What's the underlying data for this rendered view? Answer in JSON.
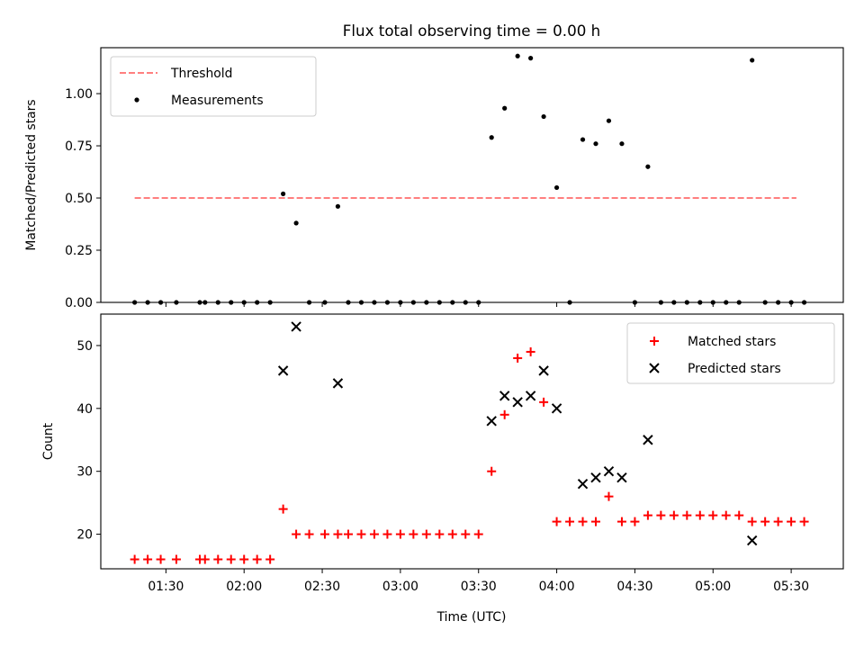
{
  "chart_data": [
    {
      "type": "scatter",
      "title": "Flux total observing time = 0.00 h",
      "xlabel": "",
      "ylabel": "Matched/Predicted stars",
      "ylim": [
        0,
        1.22
      ],
      "yticks": [
        0.0,
        0.25,
        0.5,
        0.75,
        1.0
      ],
      "ytick_labels": [
        "0.00",
        "0.25",
        "0.50",
        "0.75",
        "1.00"
      ],
      "xlim": [
        "01:05",
        "05:50"
      ],
      "grid": false,
      "legend_position": "top-left",
      "threshold": {
        "name": "Threshold",
        "value": 0.5,
        "x_start": "01:18",
        "x_end": "05:32",
        "color": "#ff7f7f"
      },
      "series": [
        {
          "name": "Measurements",
          "color": "#000000",
          "points": [
            [
              "01:18",
              0
            ],
            [
              "01:23",
              0
            ],
            [
              "01:28",
              0
            ],
            [
              "01:34",
              0
            ],
            [
              "01:43",
              0
            ],
            [
              "01:45",
              0
            ],
            [
              "01:50",
              0
            ],
            [
              "01:55",
              0
            ],
            [
              "02:00",
              0
            ],
            [
              "02:05",
              0
            ],
            [
              "02:10",
              0
            ],
            [
              "02:15",
              0.52
            ],
            [
              "02:20",
              0.38
            ],
            [
              "02:25",
              0
            ],
            [
              "02:31",
              0
            ],
            [
              "02:36",
              0.46
            ],
            [
              "02:40",
              0
            ],
            [
              "02:45",
              0
            ],
            [
              "02:50",
              0
            ],
            [
              "02:55",
              0
            ],
            [
              "03:00",
              0
            ],
            [
              "03:05",
              0
            ],
            [
              "03:10",
              0
            ],
            [
              "03:15",
              0
            ],
            [
              "03:20",
              0
            ],
            [
              "03:25",
              0
            ],
            [
              "03:30",
              0
            ],
            [
              "03:35",
              0.79
            ],
            [
              "03:40",
              0.93
            ],
            [
              "03:45",
              1.18
            ],
            [
              "03:50",
              1.17
            ],
            [
              "03:55",
              0.89
            ],
            [
              "04:00",
              0.55
            ],
            [
              "04:05",
              0
            ],
            [
              "04:10",
              0.78
            ],
            [
              "04:15",
              0.76
            ],
            [
              "04:20",
              0.87
            ],
            [
              "04:25",
              0.76
            ],
            [
              "04:30",
              0
            ],
            [
              "04:35",
              0.65
            ],
            [
              "04:40",
              0
            ],
            [
              "04:45",
              0
            ],
            [
              "04:50",
              0
            ],
            [
              "04:55",
              0
            ],
            [
              "05:00",
              0
            ],
            [
              "05:05",
              0
            ],
            [
              "05:10",
              0
            ],
            [
              "05:15",
              1.16
            ],
            [
              "05:20",
              0
            ],
            [
              "05:25",
              0
            ],
            [
              "05:30",
              0
            ],
            [
              "05:35",
              0
            ]
          ]
        }
      ]
    },
    {
      "type": "scatter",
      "title": "",
      "xlabel": "Time (UTC)",
      "ylabel": "Count",
      "ylim": [
        14.5,
        55
      ],
      "yticks": [
        20,
        30,
        40,
        50
      ],
      "ytick_labels": [
        "20",
        "30",
        "40",
        "50"
      ],
      "xlim": [
        "01:05",
        "05:50"
      ],
      "xticks": [
        "01:30",
        "02:00",
        "02:30",
        "03:00",
        "03:30",
        "04:00",
        "04:30",
        "05:00",
        "05:30"
      ],
      "grid": false,
      "legend_position": "top-right",
      "series": [
        {
          "name": "Matched stars",
          "marker": "plus",
          "color": "#ff0000",
          "points": [
            [
              "01:18",
              16
            ],
            [
              "01:23",
              16
            ],
            [
              "01:28",
              16
            ],
            [
              "01:34",
              16
            ],
            [
              "01:43",
              16
            ],
            [
              "01:45",
              16
            ],
            [
              "01:50",
              16
            ],
            [
              "01:55",
              16
            ],
            [
              "02:00",
              16
            ],
            [
              "02:05",
              16
            ],
            [
              "02:10",
              16
            ],
            [
              "02:15",
              24
            ],
            [
              "02:20",
              20
            ],
            [
              "02:25",
              20
            ],
            [
              "02:31",
              20
            ],
            [
              "02:36",
              20
            ],
            [
              "02:40",
              20
            ],
            [
              "02:45",
              20
            ],
            [
              "02:50",
              20
            ],
            [
              "02:55",
              20
            ],
            [
              "03:00",
              20
            ],
            [
              "03:05",
              20
            ],
            [
              "03:10",
              20
            ],
            [
              "03:15",
              20
            ],
            [
              "03:20",
              20
            ],
            [
              "03:25",
              20
            ],
            [
              "03:30",
              20
            ],
            [
              "03:35",
              30
            ],
            [
              "03:40",
              39
            ],
            [
              "03:45",
              48
            ],
            [
              "03:50",
              49
            ],
            [
              "03:55",
              41
            ],
            [
              "04:00",
              22
            ],
            [
              "04:05",
              22
            ],
            [
              "04:10",
              22
            ],
            [
              "04:15",
              22
            ],
            [
              "04:20",
              26
            ],
            [
              "04:25",
              22
            ],
            [
              "04:30",
              22
            ],
            [
              "04:35",
              23
            ],
            [
              "04:40",
              23
            ],
            [
              "04:45",
              23
            ],
            [
              "04:50",
              23
            ],
            [
              "04:55",
              23
            ],
            [
              "05:00",
              23
            ],
            [
              "05:05",
              23
            ],
            [
              "05:10",
              23
            ],
            [
              "05:15",
              22
            ],
            [
              "05:20",
              22
            ],
            [
              "05:25",
              22
            ],
            [
              "05:30",
              22
            ],
            [
              "05:35",
              22
            ]
          ]
        },
        {
          "name": "Predicted stars",
          "marker": "x",
          "color": "#000000",
          "points": [
            [
              "02:15",
              46
            ],
            [
              "02:20",
              53
            ],
            [
              "02:36",
              44
            ],
            [
              "03:35",
              38
            ],
            [
              "03:40",
              42
            ],
            [
              "03:45",
              41
            ],
            [
              "03:50",
              42
            ],
            [
              "03:55",
              46
            ],
            [
              "04:00",
              40
            ],
            [
              "04:10",
              28
            ],
            [
              "04:15",
              29
            ],
            [
              "04:20",
              30
            ],
            [
              "04:25",
              29
            ],
            [
              "04:35",
              35
            ],
            [
              "05:15",
              19
            ]
          ]
        }
      ]
    }
  ]
}
